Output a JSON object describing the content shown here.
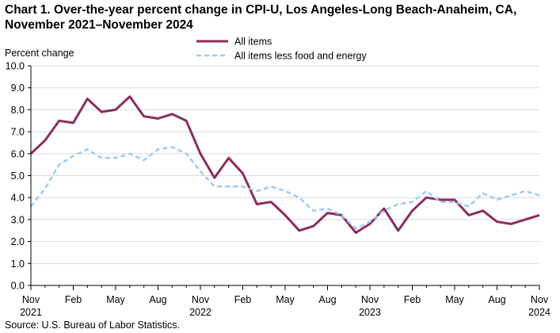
{
  "title_line1": "Chart 1. Over-the-year percent change in CPI-U, Los Angeles-Long  Beach-Anaheim,  CA,",
  "title_line2": "November  2021–November  2024",
  "source": "Source:  U.S. Bureau  of  Labor  Statistics.",
  "colors": {
    "all_items": "#8b2d5f",
    "core": "#9ecbf0",
    "axis": "#000000",
    "grid": "#d9d9d9"
  },
  "chart_data": {
    "type": "line",
    "title": "Chart 1. Over-the-year percent change in CPI-U, Los Angeles-Long Beach-Anaheim, CA, November 2021–November 2024",
    "ylabel": "Percent change",
    "xlabel": "",
    "ylim": [
      0,
      10
    ],
    "yticks": [
      "0.0",
      "1.0",
      "2.0",
      "3.0",
      "4.0",
      "5.0",
      "6.0",
      "7.0",
      "8.0",
      "9.0",
      "10.0"
    ],
    "grid": "horizontal",
    "legend_position": "top-center",
    "x_tick_labels": [
      {
        "month": "Nov",
        "year": "2021"
      },
      {
        "month": "Feb",
        "year": ""
      },
      {
        "month": "May",
        "year": ""
      },
      {
        "month": "Aug",
        "year": ""
      },
      {
        "month": "Nov",
        "year": "2022"
      },
      {
        "month": "Feb",
        "year": ""
      },
      {
        "month": "May",
        "year": ""
      },
      {
        "month": "Aug",
        "year": ""
      },
      {
        "month": "Nov",
        "year": "2023"
      },
      {
        "month": "Feb",
        "year": ""
      },
      {
        "month": "May",
        "year": ""
      },
      {
        "month": "Aug",
        "year": ""
      },
      {
        "month": "Nov",
        "year": "2024"
      }
    ],
    "series": [
      {
        "name": "All items",
        "style": "solid",
        "values": [
          6.0,
          6.6,
          7.5,
          7.4,
          8.5,
          7.9,
          8.0,
          8.6,
          7.7,
          7.6,
          7.8,
          7.5,
          6.0,
          4.9,
          5.8,
          5.1,
          3.7,
          3.8,
          3.2,
          2.5,
          2.7,
          3.3,
          3.2,
          2.4,
          2.8,
          3.5,
          2.5,
          3.4,
          4.0,
          3.9,
          3.9,
          3.2,
          3.4,
          2.9,
          2.8,
          3.0,
          3.2
        ]
      },
      {
        "name": "All items less food and energy",
        "style": "dashed",
        "values": [
          3.6,
          4.4,
          5.5,
          5.9,
          6.2,
          5.8,
          5.8,
          6.0,
          5.7,
          6.2,
          6.3,
          6.0,
          5.2,
          4.5,
          4.5,
          4.5,
          4.3,
          4.5,
          4.3,
          4.0,
          3.4,
          3.5,
          3.2,
          2.6,
          2.9,
          3.4,
          3.7,
          3.8,
          4.3,
          3.8,
          3.8,
          3.6,
          4.2,
          3.9,
          4.1,
          4.3,
          4.1
        ]
      }
    ]
  }
}
